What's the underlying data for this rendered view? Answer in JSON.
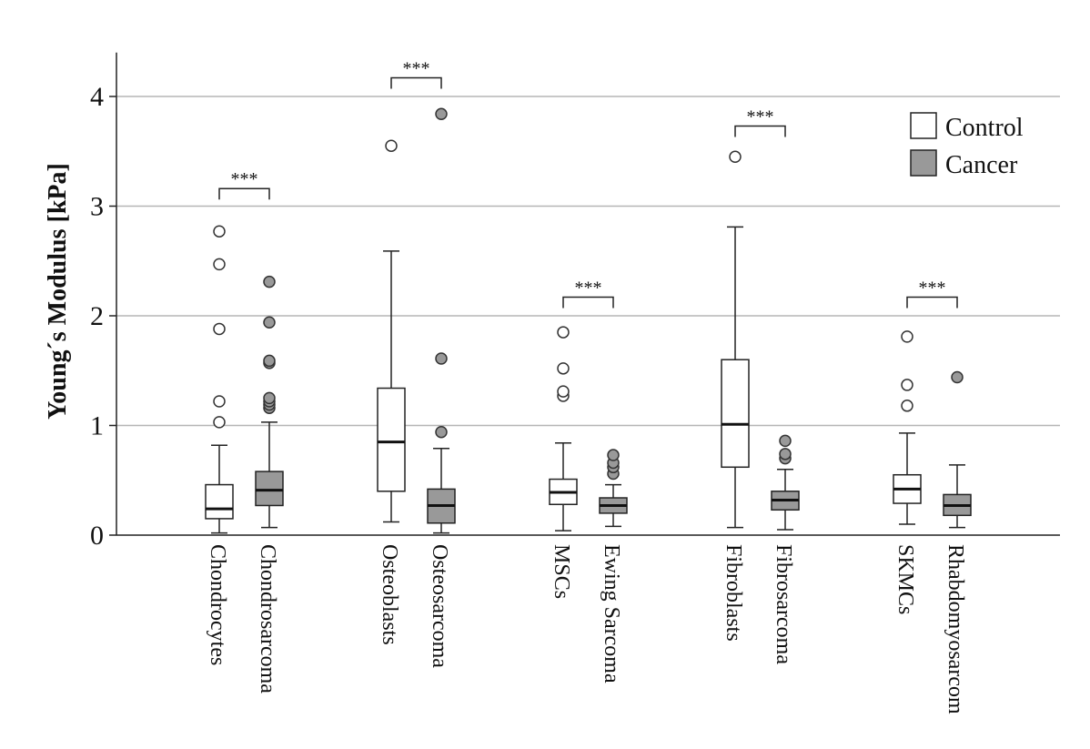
{
  "chart_data": {
    "type": "boxplot",
    "ylabel": "Young´s Modulus [kPa]",
    "xlabel": "",
    "ylim": [
      0,
      4.4
    ],
    "yticks": [
      0,
      1,
      2,
      3,
      4
    ],
    "grid": true,
    "legend": {
      "placement": "top-right",
      "entries": [
        {
          "name": "Control",
          "color": "#ffffff"
        },
        {
          "name": "Cancer",
          "color": "#999999"
        }
      ]
    },
    "categories": [
      "Chondrocytes",
      "Chondrosarcoma",
      "Osteoblasts",
      "Osteosarcoma",
      "MSCs",
      "Ewing Sarcoma",
      "Fibroblasts",
      "Fibrosarcoma",
      "SKMCs",
      "Rhabdomyosarcom"
    ],
    "boxes": [
      {
        "label": "Chondrocytes",
        "group": "Control",
        "min": 0.02,
        "q1": 0.15,
        "median": 0.24,
        "q3": 0.46,
        "max": 0.82,
        "outliers": [
          1.03,
          1.22,
          1.88,
          2.47,
          2.77
        ]
      },
      {
        "label": "Chondrosarcoma",
        "group": "Cancer",
        "min": 0.07,
        "q1": 0.27,
        "median": 0.41,
        "q3": 0.58,
        "max": 1.03,
        "outliers": [
          1.16,
          1.19,
          1.22,
          1.25,
          1.57,
          1.59,
          1.94,
          2.31
        ]
      },
      {
        "label": "Osteoblasts",
        "group": "Control",
        "min": 0.12,
        "q1": 0.4,
        "median": 0.85,
        "q3": 1.34,
        "max": 2.59,
        "outliers": [
          3.55
        ]
      },
      {
        "label": "Osteosarcoma",
        "group": "Cancer",
        "min": 0.02,
        "q1": 0.11,
        "median": 0.27,
        "q3": 0.42,
        "max": 0.79,
        "outliers": [
          0.94,
          1.61,
          3.84
        ]
      },
      {
        "label": "MSCs",
        "group": "Control",
        "min": 0.04,
        "q1": 0.28,
        "median": 0.39,
        "q3": 0.51,
        "max": 0.84,
        "outliers": [
          1.27,
          1.31,
          1.52,
          1.85
        ]
      },
      {
        "label": "Ewing Sarcoma",
        "group": "Cancer",
        "min": 0.08,
        "q1": 0.2,
        "median": 0.27,
        "q3": 0.34,
        "max": 0.46,
        "outliers": [
          0.56,
          0.62,
          0.66,
          0.73
        ]
      },
      {
        "label": "Fibroblasts",
        "group": "Control",
        "min": 0.07,
        "q1": 0.62,
        "median": 1.01,
        "q3": 1.6,
        "max": 2.81,
        "outliers": [
          3.45
        ]
      },
      {
        "label": "Fibrosarcoma",
        "group": "Cancer",
        "min": 0.05,
        "q1": 0.23,
        "median": 0.32,
        "q3": 0.4,
        "max": 0.6,
        "outliers": [
          0.7,
          0.74,
          0.86
        ]
      },
      {
        "label": "SKMCs",
        "group": "Control",
        "min": 0.1,
        "q1": 0.29,
        "median": 0.42,
        "q3": 0.55,
        "max": 0.93,
        "outliers": [
          1.18,
          1.37,
          1.81
        ]
      },
      {
        "label": "Rhabdomyosarcom",
        "group": "Cancer",
        "min": 0.07,
        "q1": 0.18,
        "median": 0.27,
        "q3": 0.37,
        "max": 0.64,
        "outliers": [
          1.44
        ]
      }
    ],
    "significance": [
      {
        "pair": [
          0,
          1
        ],
        "label": "***",
        "level": 3.16
      },
      {
        "pair": [
          2,
          3
        ],
        "label": "***",
        "level": 4.17
      },
      {
        "pair": [
          4,
          5
        ],
        "label": "***",
        "level": 2.17
      },
      {
        "pair": [
          6,
          7
        ],
        "label": "***",
        "level": 3.73
      },
      {
        "pair": [
          8,
          9
        ],
        "label": "***",
        "level": 2.17
      }
    ]
  }
}
